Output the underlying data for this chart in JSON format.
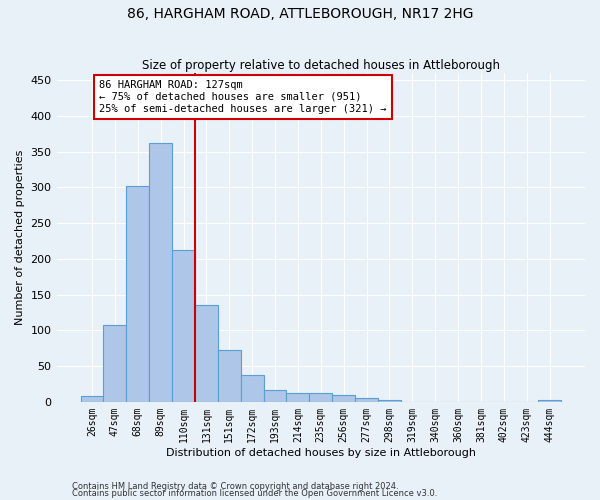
{
  "title": "86, HARGHAM ROAD, ATTLEBOROUGH, NR17 2HG",
  "subtitle": "Size of property relative to detached houses in Attleborough",
  "xlabel": "Distribution of detached houses by size in Attleborough",
  "ylabel": "Number of detached properties",
  "footnote1": "Contains HM Land Registry data © Crown copyright and database right 2024.",
  "footnote2": "Contains public sector information licensed under the Open Government Licence v3.0.",
  "bar_labels": [
    "26sqm",
    "47sqm",
    "68sqm",
    "89sqm",
    "110sqm",
    "131sqm",
    "151sqm",
    "172sqm",
    "193sqm",
    "214sqm",
    "235sqm",
    "256sqm",
    "277sqm",
    "298sqm",
    "319sqm",
    "340sqm",
    "360sqm",
    "381sqm",
    "402sqm",
    "423sqm",
    "444sqm"
  ],
  "bar_heights": [
    8,
    108,
    302,
    362,
    212,
    135,
    72,
    38,
    16,
    12,
    12,
    10,
    6,
    2,
    0,
    0,
    0,
    0,
    0,
    0,
    2
  ],
  "bar_color": "#aec6e8",
  "bar_edge_color": "#5a9fd4",
  "vline_color": "#cc0000",
  "annotation_text": "86 HARGHAM ROAD: 127sqm\n← 75% of detached houses are smaller (951)\n25% of semi-detached houses are larger (321) →",
  "annotation_box_color": "#cc0000",
  "bg_color": "#e8f0f8",
  "ylim": [
    0,
    460
  ],
  "yticks": [
    0,
    50,
    100,
    150,
    200,
    250,
    300,
    350,
    400,
    450
  ]
}
